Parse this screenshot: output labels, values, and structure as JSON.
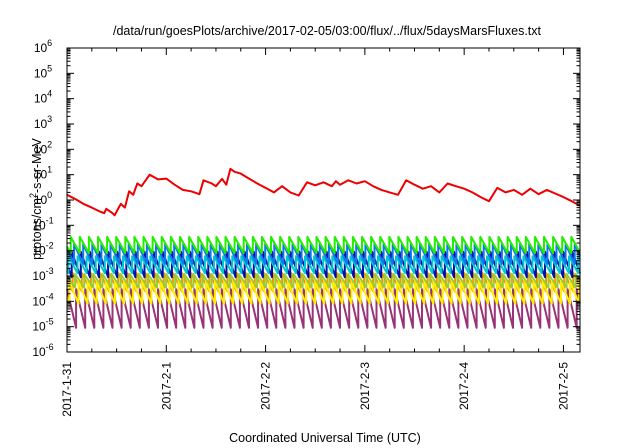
{
  "chart_data": {
    "type": "line",
    "title": "/data/run/goesPlots/archive/2017-02-05/03:00/flux/../flux/5daysMarsFluxes.txt",
    "xlabel": "Coordinated Universal Time (UTC)",
    "ylabel": "protons/cm²-s-sr-MeV",
    "ylabel_parts": {
      "base": "protons/cm",
      "sup": "2",
      "rest": "-s-sr-MeV"
    },
    "yscale": "log",
    "ylim": [
      1e-06,
      1000000.0
    ],
    "y_ticks": [
      {
        "base": "10",
        "exp": "-6",
        "value": -6
      },
      {
        "base": "10",
        "exp": "-5",
        "value": -5
      },
      {
        "base": "10",
        "exp": "-4",
        "value": -4
      },
      {
        "base": "10",
        "exp": "-3",
        "value": -3
      },
      {
        "base": "10",
        "exp": "-2",
        "value": -2
      },
      {
        "base": "10",
        "exp": "-1",
        "value": -1
      },
      {
        "base": "10",
        "exp": "0",
        "value": 0
      },
      {
        "base": "10",
        "exp": "1",
        "value": 1
      },
      {
        "base": "10",
        "exp": "2",
        "value": 2
      },
      {
        "base": "10",
        "exp": "3",
        "value": 3
      },
      {
        "base": "10",
        "exp": "4",
        "value": 4
      },
      {
        "base": "10",
        "exp": "5",
        "value": 5
      },
      {
        "base": "10",
        "exp": "6",
        "value": 6
      }
    ],
    "xlim": [
      "2017-01-31",
      "2017-02-05 04:00"
    ],
    "x_ticks": [
      "2017-1-31",
      "2017-2-1",
      "2017-2-2",
      "2017-2-3",
      "2017-2-4",
      "2017-2-5"
    ],
    "grid": false,
    "legend": "none",
    "series": [
      {
        "color": "#ee0000",
        "kind": "red",
        "x": [
          "2017-01-31 00:00",
          "2017-01-31 02:00",
          "2017-01-31 04:00",
          "2017-01-31 06:00",
          "2017-01-31 08:00",
          "2017-01-31 09:00",
          "2017-01-31 09:30",
          "2017-01-31 11:00",
          "2017-01-31 11:30",
          "2017-01-31 13:00",
          "2017-01-31 14:00",
          "2017-01-31 15:00",
          "2017-01-31 16:00",
          "2017-01-31 17:00",
          "2017-01-31 18:00",
          "2017-01-31 20:00",
          "2017-01-31 22:00",
          "2017-02-01 00:00",
          "2017-02-01 02:00",
          "2017-02-01 04:00",
          "2017-02-01 06:00",
          "2017-02-01 08:00",
          "2017-02-01 09:00",
          "2017-02-01 11:00",
          "2017-02-01 12:00",
          "2017-02-01 13:30",
          "2017-02-01 14:30",
          "2017-02-01 15:30",
          "2017-02-01 16:30",
          "2017-02-01 18:00",
          "2017-02-01 20:00",
          "2017-02-01 22:00",
          "2017-02-02 00:00",
          "2017-02-02 02:00",
          "2017-02-02 04:00",
          "2017-02-02 06:00",
          "2017-02-02 08:00",
          "2017-02-02 10:00",
          "2017-02-02 12:00",
          "2017-02-02 14:00",
          "2017-02-02 16:00",
          "2017-02-02 17:00",
          "2017-02-02 18:00",
          "2017-02-02 20:00",
          "2017-02-02 22:00",
          "2017-02-03 00:00",
          "2017-02-03 02:00",
          "2017-02-03 04:00",
          "2017-02-03 06:00",
          "2017-02-03 08:00",
          "2017-02-03 10:00",
          "2017-02-03 12:00",
          "2017-02-03 14:00",
          "2017-02-03 16:00",
          "2017-02-03 18:00",
          "2017-02-03 20:00",
          "2017-02-03 22:00",
          "2017-02-04 00:00",
          "2017-02-04 02:00",
          "2017-02-04 04:00",
          "2017-02-04 06:00",
          "2017-02-04 08:00",
          "2017-02-04 10:00",
          "2017-02-04 12:00",
          "2017-02-04 14:00",
          "2017-02-04 16:00",
          "2017-02-04 18:00",
          "2017-02-04 20:00",
          "2017-02-04 22:00",
          "2017-02-05 00:00",
          "2017-02-05 02:00",
          "2017-02-05 04:00"
        ],
        "y": [
          1.6,
          1.1,
          0.7,
          0.5,
          0.35,
          0.3,
          0.45,
          0.3,
          0.25,
          0.7,
          0.5,
          2.2,
          1.6,
          4.5,
          3.5,
          10,
          6.5,
          7,
          4,
          2.5,
          2.2,
          1.7,
          6,
          4.5,
          3.5,
          6.8,
          4,
          17,
          13,
          11,
          7,
          4.5,
          3,
          2,
          3.5,
          2,
          1.5,
          5,
          3.8,
          5,
          3.5,
          5.5,
          4,
          6,
          4.5,
          5.5,
          3.5,
          2.5,
          2,
          1.6,
          6,
          4,
          2.8,
          3.5,
          2,
          4.5,
          3.5,
          2.8,
          2,
          1.3,
          0.9,
          3,
          2,
          2.5,
          1.6,
          2.8,
          1.7,
          2.5,
          1.8,
          1.3,
          0.9,
          0.6
        ]
      },
      {
        "color": "#22ee00",
        "kind": "sawtooth",
        "low": 0.008,
        "high": 0.035
      },
      {
        "color": "#1177ee",
        "kind": "sawtooth",
        "low": 0.003,
        "high": 0.018
      },
      {
        "color": "#00c8cc",
        "kind": "sawtooth",
        "low": 0.0013,
        "high": 0.006
      },
      {
        "color": "#0011aa",
        "kind": "sawtooth",
        "low": 0.0009,
        "high": 0.009
      },
      {
        "color": "#99cc33",
        "kind": "sawtooth",
        "low": 0.00035,
        "high": 0.0012
      },
      {
        "color": "#ffee00",
        "kind": "sawtooth",
        "low": 8e-05,
        "high": 0.0006
      },
      {
        "color": "#ee9900",
        "kind": "sawtooth",
        "low": 0.00025,
        "high": 0.0013
      },
      {
        "color": "#993377",
        "kind": "sawtooth",
        "low": 9e-06,
        "high": 0.0003
      }
    ],
    "sawtooth_period_hours": 2.2
  }
}
